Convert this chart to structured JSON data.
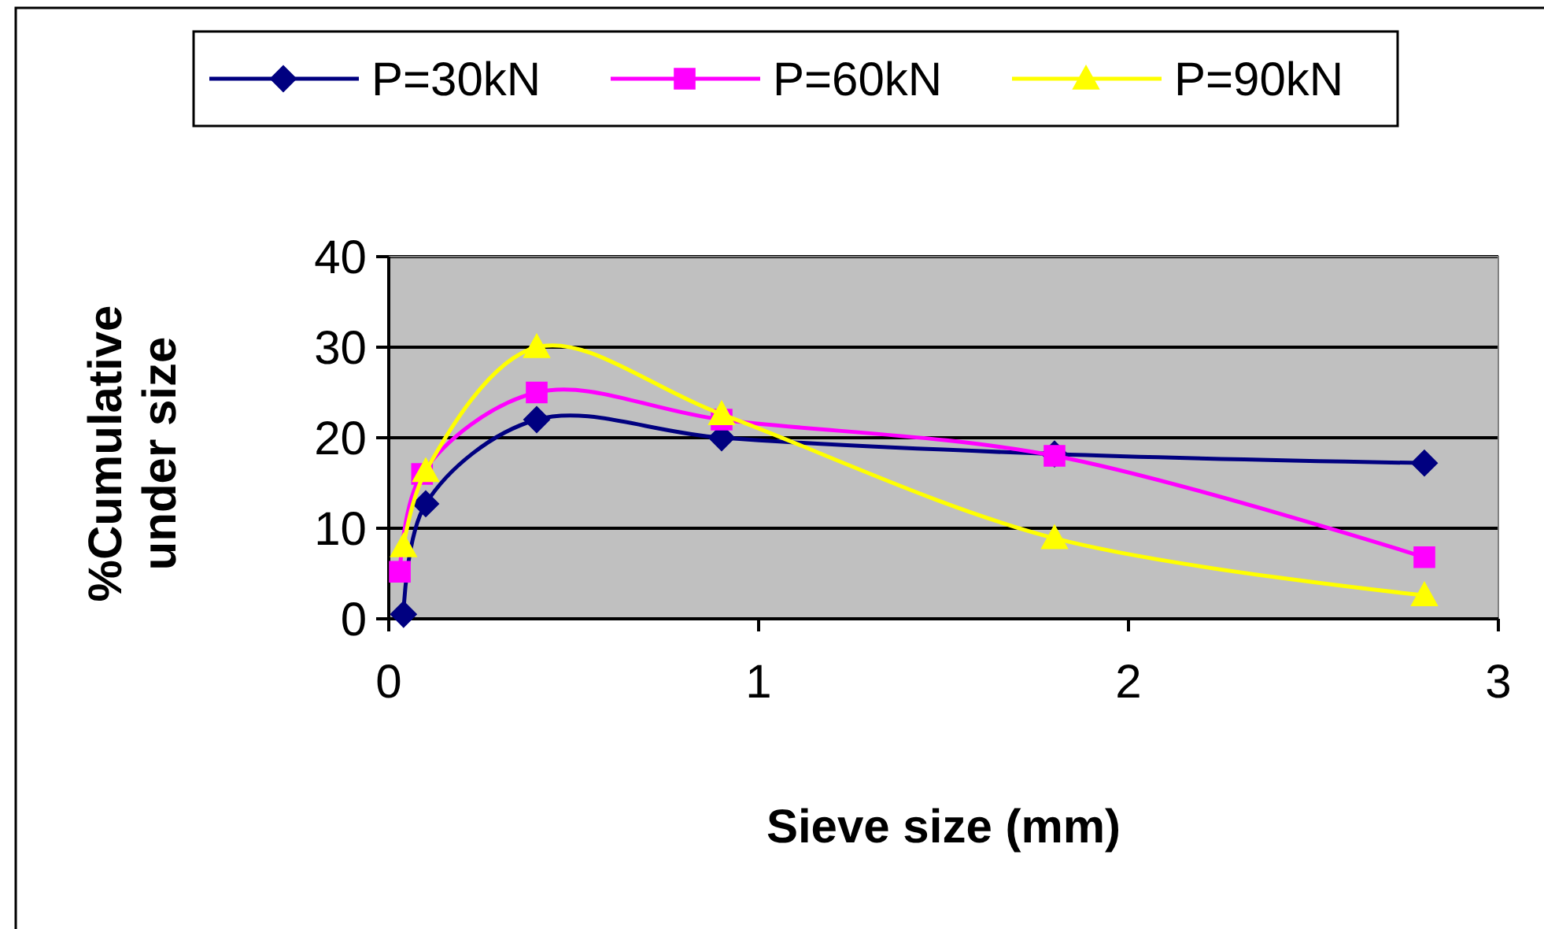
{
  "chart_data": {
    "type": "line",
    "xlabel": "Sieve size (mm)",
    "ylabel": "%Cumulative under size",
    "xlim": [
      0,
      3
    ],
    "xticks": [
      0,
      1,
      2,
      3
    ],
    "ylim": [
      0,
      40
    ],
    "yticks": [
      0,
      10,
      20,
      30,
      40
    ],
    "grid": "y",
    "legend": "top",
    "line_style": "solid",
    "series": [
      {
        "name": "P=30kN",
        "color": "#000080",
        "marker": "diamond",
        "x": [
          0.04,
          0.1,
          0.4,
          0.9,
          1.8,
          2.8
        ],
        "values": [
          0.5,
          12.7,
          22,
          20,
          18.2,
          17.2
        ]
      },
      {
        "name": "P=60kN",
        "color": "#ff00ff",
        "marker": "square",
        "x": [
          0.03,
          0.09,
          0.4,
          0.9,
          1.8,
          2.8
        ],
        "values": [
          5.2,
          16,
          25,
          22,
          18,
          6.8
        ]
      },
      {
        "name": "P=90kN",
        "color": "#ffff00",
        "marker": "triangle",
        "x": [
          0.04,
          0.1,
          0.4,
          0.9,
          1.8,
          2.8
        ],
        "values": [
          8,
          16.3,
          30,
          22.6,
          8.9,
          2.6
        ]
      }
    ]
  }
}
